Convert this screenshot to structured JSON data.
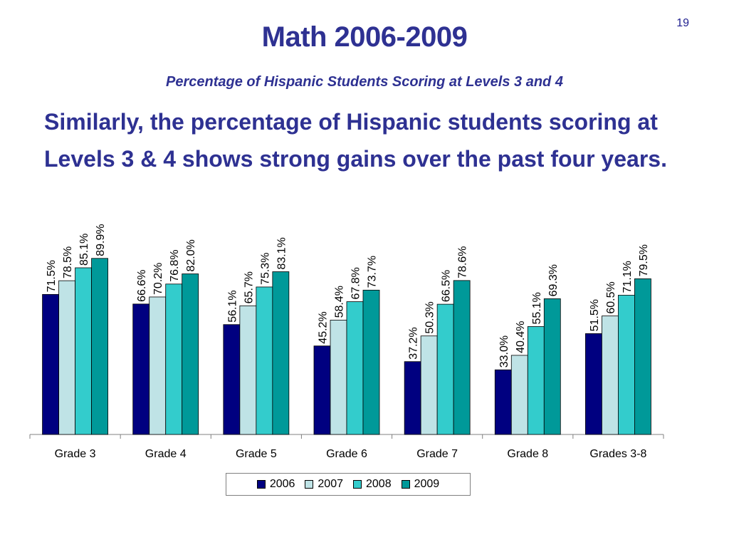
{
  "page_number": "19",
  "title": "Math 2006-2009",
  "subtitle": "Percentage of Hispanic Students Scoring at Levels 3 and 4",
  "body_text": "Similarly, the percentage of Hispanic students scoring at Levels 3 & 4 shows strong gains over the past four years.",
  "chart_data": {
    "type": "bar",
    "categories": [
      "Grade 3",
      "Grade 4",
      "Grade 5",
      "Grade 6",
      "Grade 7",
      "Grade 8",
      "Grades 3-8"
    ],
    "series": [
      {
        "name": "2006",
        "color": "#000080",
        "values": [
          71.5,
          66.6,
          56.1,
          45.2,
          37.2,
          33.0,
          51.5
        ],
        "labels": [
          "71.5%",
          "66.6%",
          "56.1%",
          "45.2%",
          "37.2%",
          "33.0%",
          "51.5%"
        ]
      },
      {
        "name": "2007",
        "color": "#bfe3e6",
        "values": [
          78.5,
          70.2,
          65.7,
          58.4,
          50.3,
          40.4,
          60.5
        ],
        "labels": [
          "78.5%",
          "70.2%",
          "65.7%",
          "58.4%",
          "50.3%",
          "40.4%",
          "60.5%"
        ]
      },
      {
        "name": "2008",
        "color": "#33cccc",
        "values": [
          85.1,
          76.8,
          75.3,
          67.8,
          66.5,
          55.1,
          71.1
        ],
        "labels": [
          "85.1%",
          "76.8%",
          "75.3%",
          "67.8%",
          "66.5%",
          "55.1%",
          "71.1%"
        ]
      },
      {
        "name": "2009",
        "color": "#009999",
        "values": [
          89.9,
          82.0,
          83.1,
          73.7,
          78.6,
          69.3,
          79.5
        ],
        "labels": [
          "89.9%",
          "82.0%",
          "83.1%",
          "73.7%",
          "78.6%",
          "69.3%",
          "79.5%"
        ]
      }
    ],
    "ylim": [
      0,
      100
    ],
    "grid": false,
    "legend_position": "bottom"
  }
}
